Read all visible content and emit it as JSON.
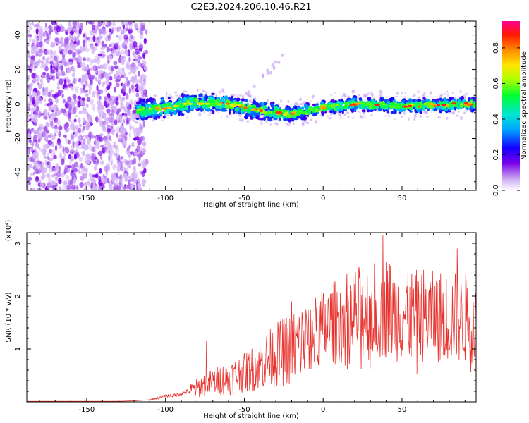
{
  "title": "C2E3.2024.206.10.46.R21",
  "colors": {
    "snr_line": "#e8322d",
    "axis": "#000000"
  },
  "chart_data": [
    {
      "type": "heatmap",
      "title": "C2E3.2024.206.10.46.R21",
      "xlabel": "Height of straight line (km)",
      "ylabel": "Frequency (Hz)",
      "xlim": [
        -188,
        97
      ],
      "ylim": [
        -50,
        48
      ],
      "x_ticks": [
        -150,
        -100,
        -50,
        0,
        50
      ],
      "x_tick_labels": [
        "-150",
        "-100",
        "-50",
        "0",
        "50"
      ],
      "y_ticks": [
        -40,
        -20,
        0,
        20,
        40
      ],
      "y_tick_labels": [
        "-40",
        "-20",
        "0",
        "20",
        "40"
      ],
      "colorbar": {
        "label": "Normalized spectral amplitude",
        "range": [
          0,
          0.95
        ],
        "ticks": [
          0,
          0.2,
          0.4,
          0.6,
          0.8
        ],
        "tick_labels": [
          "0.0",
          "0.2",
          "0.4",
          "0.6",
          "0.8"
        ],
        "colormap": "rainbow"
      },
      "features": [
        {
          "kind": "noise",
          "x_range": [
            -188,
            -120
          ],
          "freq_range": [
            -50,
            48
          ],
          "amplitude": 0.05
        },
        {
          "kind": "signal_band",
          "x_range": [
            -120,
            97
          ],
          "center_freq_hz": [
            [
              -120,
              -4
            ],
            [
              -100,
              -2
            ],
            [
              -80,
              1
            ],
            [
              -60,
              0
            ],
            [
              -40,
              -4
            ],
            [
              -20,
              -6
            ],
            [
              0,
              -2
            ],
            [
              20,
              0
            ],
            [
              50,
              -1
            ],
            [
              97,
              0
            ]
          ],
          "band_width_hz": 4,
          "peak_amplitude": 0.92
        },
        {
          "kind": "faint_streak",
          "x_range": [
            -50,
            -25
          ],
          "freq_range": [
            4,
            28
          ],
          "amplitude": 0.08
        }
      ]
    },
    {
      "type": "line",
      "xlabel": "Height of straight line (km)",
      "ylabel": "SNR (10 * v/v)",
      "y_multiplier": "(x10⁴)",
      "xlim": [
        -188,
        97
      ],
      "ylim": [
        0,
        3.2
      ],
      "x_ticks": [
        -150,
        -100,
        -50,
        0,
        50
      ],
      "x_tick_labels": [
        "-150",
        "-100",
        "-50",
        "0",
        "50"
      ],
      "y_ticks": [
        1,
        2,
        3
      ],
      "y_tick_labels": [
        "1",
        "2",
        "3"
      ],
      "series": [
        {
          "x": [
            -188,
            -170,
            -150,
            -130,
            -120,
            -110,
            -105,
            -100,
            -95,
            -90,
            -85,
            -80,
            -75,
            -70,
            -65,
            -60,
            -55,
            -50,
            -45,
            -40,
            -35,
            -30,
            -25,
            -20,
            -15,
            -10,
            -5,
            0,
            5,
            10,
            15,
            20,
            25,
            30,
            35,
            40,
            45,
            50,
            55,
            60,
            65,
            70,
            75,
            80,
            85,
            90,
            97
          ],
          "y": [
            0.01,
            0.01,
            0.01,
            0.01,
            0.02,
            0.04,
            0.07,
            0.11,
            0.12,
            0.16,
            0.2,
            0.26,
            0.33,
            0.38,
            0.42,
            0.45,
            0.5,
            0.55,
            0.62,
            0.7,
            0.8,
            0.88,
            0.95,
            1.02,
            1.1,
            1.18,
            1.3,
            1.4,
            1.45,
            1.52,
            1.6,
            1.65,
            1.68,
            1.72,
            1.75,
            1.8,
            1.7,
            1.66,
            1.62,
            1.62,
            1.66,
            1.6,
            1.62,
            1.58,
            1.6,
            1.58,
            1.6
          ]
        }
      ],
      "notable_peaks": [
        {
          "x": -74,
          "y": 1.15
        },
        {
          "x": -20,
          "y": 1.9
        },
        {
          "x": 7,
          "y": 2.3
        },
        {
          "x": 38,
          "y": 3.15
        },
        {
          "x": 85,
          "y": 2.9
        }
      ]
    }
  ]
}
